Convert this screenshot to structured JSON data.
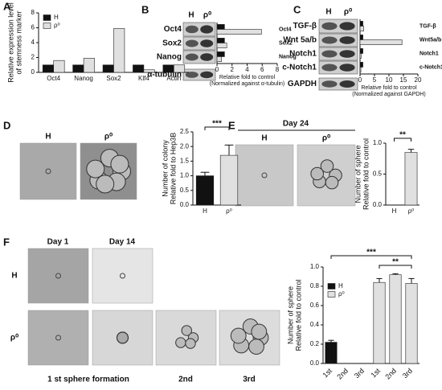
{
  "panels": [
    "A",
    "B",
    "C",
    "D",
    "E",
    "F"
  ],
  "blots": {
    "B": {
      "lanes": [
        "H",
        "ρ⁰"
      ],
      "rows": [
        "Oct4",
        "Sox2",
        "Nanog",
        "α-tubulin"
      ]
    },
    "C": {
      "lanes": [
        "H",
        "ρ⁰"
      ],
      "rows": [
        "TGF-β",
        "Wnt 5a/b",
        "Notch1",
        "c-Notch1",
        "GAPDH"
      ]
    }
  },
  "images": {
    "D": {
      "labels": [
        "H",
        "ρ⁰"
      ]
    },
    "E": {
      "title": "Day 24",
      "labels": [
        "H",
        "ρ⁰"
      ]
    },
    "F": {
      "columns": [
        "Day 1",
        "Day 14"
      ],
      "rows": [
        "H",
        "ρ⁰"
      ],
      "captions": [
        "1 st sphere formation",
        "2nd",
        "3rd"
      ]
    }
  },
  "chart_data": [
    {
      "type": "bar",
      "y_label": [
        "Relative expression level",
        "of stemness marker"
      ],
      "categories": [
        "Oct4",
        "Nanog",
        "Sox2",
        "Klf4",
        "Actin"
      ],
      "series": [
        {
          "name": "H",
          "color": "#111111",
          "values": [
            1,
            1,
            1,
            1,
            1
          ]
        },
        {
          "name": "ρ⁰",
          "color": "#e0e0e0",
          "values": [
            1.6,
            1.9,
            5.9,
            0.35,
            1.0
          ]
        }
      ],
      "ylim": [
        0,
        8
      ],
      "yticks": [
        0,
        2,
        4,
        6,
        8
      ],
      "legend": "upper left"
    },
    {
      "type": "bar",
      "orientation": "horizontal",
      "x_label": [
        "Relative fold to control",
        "(Normalized against α-tubulin)"
      ],
      "categories": [
        "Oct4",
        "Sox2",
        "Nanog"
      ],
      "series": [
        {
          "name": "H",
          "color": "#111111",
          "values": [
            1,
            1,
            1
          ]
        },
        {
          "name": "ρ⁰",
          "color": "#e0e0e0",
          "values": [
            5.9,
            1.3,
            0.6
          ]
        }
      ],
      "xlim": [
        0,
        8
      ],
      "xticks": [
        0,
        2,
        4,
        6,
        8
      ]
    },
    {
      "type": "bar",
      "orientation": "horizontal",
      "x_label": [
        "Relative fold to control",
        "(Normalized against GAPDH)"
      ],
      "categories": [
        "TGF-β",
        "Wnt5a/b",
        "Notch1",
        "c-Notch1"
      ],
      "series": [
        {
          "name": "H",
          "color": "#111111",
          "values": [
            1,
            1,
            1,
            1
          ]
        },
        {
          "name": "ρ⁰",
          "color": "#e0e0e0",
          "values": [
            1.3,
            14.5,
            0.4,
            0.3
          ]
        }
      ],
      "xlim": [
        0,
        20
      ],
      "xticks": [
        0,
        5,
        10,
        15,
        20
      ]
    },
    {
      "type": "bar",
      "y_label": [
        "Number of colony",
        "Relative fold to Hep3B"
      ],
      "categories": [
        "H",
        "ρ⁰"
      ],
      "values": [
        1.0,
        1.7
      ],
      "errors": [
        0.12,
        0.35
      ],
      "colors": [
        "#111111",
        "#e0e0e0"
      ],
      "ylim": [
        0,
        2.5
      ],
      "yticks": [
        {
          "value": 0,
          "label": "0.0"
        },
        0.5,
        {
          "value": 1,
          "label": "1.0"
        },
        1.5,
        {
          "value": 2,
          "label": "2.0"
        },
        2.5
      ],
      "annotations": [
        "***"
      ]
    },
    {
      "type": "bar",
      "y_label": [
        "Number of sphere",
        "Relative fold to control"
      ],
      "categories": [
        "H",
        "ρ⁰"
      ],
      "values": [
        0,
        0.85
      ],
      "errors": [
        0,
        0.05
      ],
      "colors": [
        "#111111",
        "#e0e0e0"
      ],
      "ylim": [
        0,
        1
      ],
      "yticks": [
        {
          "value": 0,
          "label": "0.0"
        },
        0.5,
        {
          "value": 1,
          "label": "1.0"
        }
      ],
      "annotations": [
        "**"
      ]
    },
    {
      "type": "bar",
      "y_label": [
        "Number of sphere",
        "Relative fold to control"
      ],
      "categories": [
        "1st",
        "2nd",
        "3rd",
        "1st",
        "2nd",
        "3rd"
      ],
      "series": [
        {
          "name": "H",
          "color": "#111111",
          "values": [
            0.22,
            0,
            0,
            null,
            null,
            null
          ],
          "errors": [
            0.02,
            0,
            0,
            null,
            null,
            null
          ]
        },
        {
          "name": "ρ⁰",
          "color": "#e0e0e0",
          "values": [
            null,
            null,
            null,
            0.84,
            0.92,
            0.83
          ],
          "errors": [
            null,
            null,
            null,
            0.04,
            0.01,
            0.05
          ]
        }
      ],
      "ylim": [
        0,
        1
      ],
      "yticks": [
        {
          "value": 0,
          "label": "0.0"
        },
        0.2,
        0.4,
        0.6,
        0.8,
        {
          "value": 1,
          "label": "1.0"
        }
      ],
      "xtick_rotation": 45,
      "legend": "upper left",
      "annotations": [
        "***",
        "**"
      ]
    }
  ]
}
